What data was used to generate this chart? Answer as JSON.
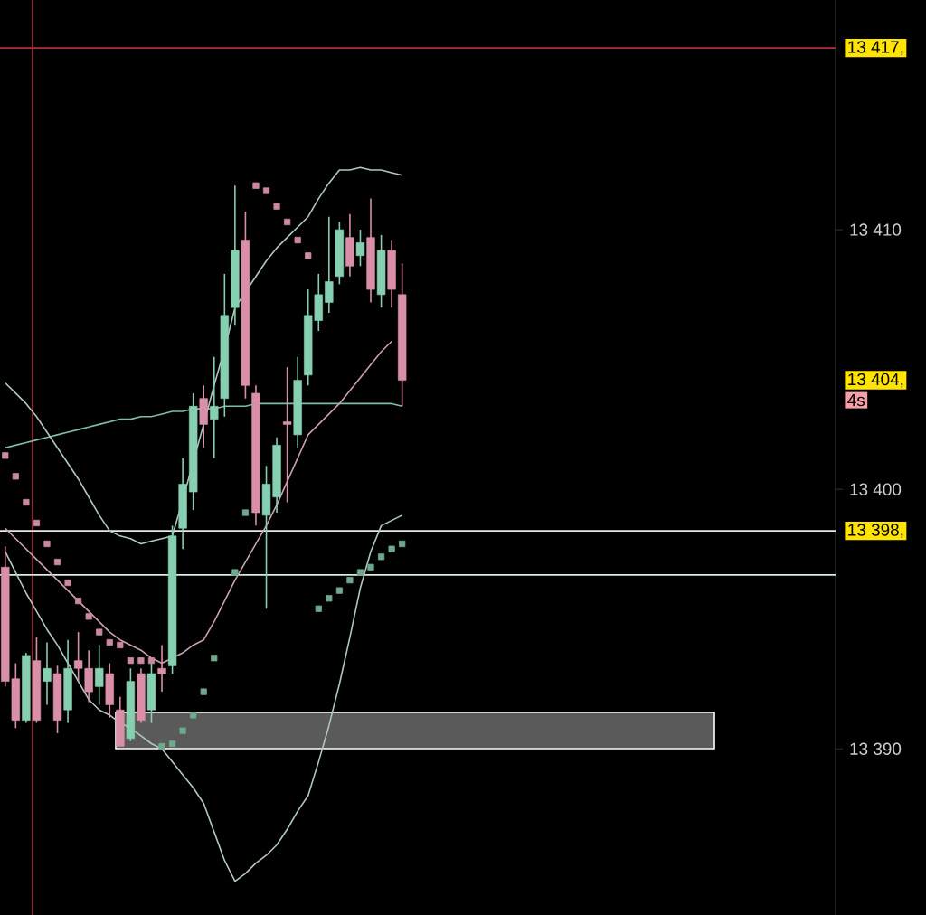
{
  "chart_data": {
    "type": "candlestick",
    "categories": [
      null,
      null,
      null,
      null,
      null,
      null,
      null,
      null,
      null,
      null,
      null,
      null,
      null,
      null,
      null,
      null,
      null,
      null,
      null,
      null,
      null,
      null,
      null,
      null,
      null,
      null,
      null,
      null,
      null,
      null,
      null,
      null,
      null,
      null,
      null,
      null,
      null,
      null,
      null,
      null,
      null,
      null,
      null,
      null,
      null,
      null,
      null,
      null,
      null,
      null,
      null,
      null,
      null,
      null,
      null,
      null,
      null,
      null,
      null,
      null,
      null,
      null,
      null,
      null,
      null,
      null,
      null,
      null,
      null,
      null,
      null,
      null,
      null,
      null,
      null,
      null,
      null,
      null,
      null,
      null
    ],
    "ohlc": [
      [
        13397.0,
        13397.8,
        13392.4,
        13392.6
      ],
      [
        13392.7,
        13393.3,
        13390.8,
        13391.1
      ],
      [
        13391.1,
        13393.7,
        13391.0,
        13393.6
      ],
      [
        13393.4,
        13394.3,
        13391.0,
        13391.1
      ],
      [
        13392.6,
        13394.1,
        13391.7,
        13393.1
      ],
      [
        13392.9,
        13393.2,
        13390.6,
        13391.1
      ],
      [
        13391.5,
        13394.2,
        13391.0,
        13393.1
      ],
      [
        13393.4,
        13394.5,
        13392.6,
        13393.1
      ],
      [
        13393.1,
        13393.8,
        13391.8,
        13392.2
      ],
      [
        13392.4,
        13394.0,
        13391.7,
        13393.1
      ],
      [
        13392.9,
        13393.3,
        13391.2,
        13391.7
      ],
      [
        13391.5,
        13392.0,
        13390.1,
        13390.1
      ],
      [
        13390.4,
        13393.1,
        13390.3,
        13392.6
      ],
      [
        13392.9,
        13393.1,
        13391.0,
        13391.1
      ],
      [
        13391.5,
        13393.3,
        13391.0,
        13392.9
      ],
      [
        13393.1,
        13394.0,
        13392.2,
        13392.9
      ],
      [
        13393.2,
        13398.6,
        13392.9,
        13398.2
      ],
      [
        13398.5,
        13401.2,
        13397.7,
        13400.2
      ],
      [
        13399.9,
        13403.7,
        13399.2,
        13403.2
      ],
      [
        13403.5,
        13404.0,
        13401.6,
        13402.5
      ],
      [
        13402.7,
        13405.1,
        13401.2,
        13403.2
      ],
      [
        13403.5,
        13408.3,
        13402.8,
        13406.7
      ],
      [
        13407.0,
        13411.7,
        13406.3,
        13409.2
      ],
      [
        13409.6,
        13410.7,
        13403.5,
        13404.0
      ],
      [
        13403.7,
        13404.0,
        13398.6,
        13399.1
      ],
      [
        13399.0,
        13400.9,
        13395.4,
        13400.2
      ],
      [
        13399.7,
        13402.0,
        13399.1,
        13401.7
      ],
      [
        13402.6,
        13404.7,
        13399.5,
        13402.5
      ],
      [
        13402.1,
        13405.1,
        13401.6,
        13404.2
      ],
      [
        13404.4,
        13407.7,
        13404.0,
        13406.7
      ],
      [
        13406.5,
        13408.3,
        13406.1,
        13407.5
      ],
      [
        13407.2,
        13410.5,
        13406.8,
        13408.0
      ],
      [
        13408.2,
        13410.3,
        13407.9,
        13410.0
      ],
      [
        13409.7,
        13410.6,
        13408.2,
        13408.6
      ],
      [
        13409.0,
        13410.0,
        13408.6,
        13409.5
      ],
      [
        13409.7,
        13411.2,
        13407.2,
        13407.7
      ],
      [
        13407.5,
        13409.8,
        13407.0,
        13409.2
      ],
      [
        13409.2,
        13409.6,
        13407.0,
        13407.7
      ],
      [
        13407.5,
        13408.7,
        13403.2,
        13404.2
      ],
      null,
      null,
      null,
      null,
      null,
      null,
      null,
      null,
      null,
      null,
      null,
      null,
      null,
      null,
      null,
      null,
      null,
      null,
      null,
      null,
      null,
      null,
      null,
      null,
      null,
      null,
      null,
      null,
      null,
      null,
      null,
      null,
      null,
      null,
      null,
      null,
      null,
      null,
      null,
      null,
      null
    ],
    "colors": [
      "#d98fa8",
      "#d98fa8",
      "#86cfb0",
      "#d98fa8",
      "#86cfb0",
      "#d98fa8",
      "#86cfb0",
      "#d98fa8",
      "#d98fa8",
      "#86cfb0",
      "#d98fa8",
      "#d98fa8",
      "#86cfb0",
      "#d98fa8",
      "#86cfb0",
      "#d98fa8",
      "#86cfb0",
      "#86cfb0",
      "#86cfb0",
      "#d98fa8",
      "#86cfb0",
      "#86cfb0",
      "#86cfb0",
      "#d98fa8",
      "#d98fa8",
      "#86cfb0",
      "#86cfb0",
      "#d98fa8",
      "#86cfb0",
      "#86cfb0",
      "#86cfb0",
      "#86cfb0",
      "#86cfb0",
      "#d98fa8",
      "#86cfb0",
      "#d98fa8",
      "#86cfb0",
      "#d98fa8",
      "#d98fa8",
      null,
      null,
      null,
      null,
      null,
      null,
      null,
      null,
      null,
      null,
      null,
      null,
      null,
      null,
      null,
      null,
      null,
      null,
      null,
      null,
      null,
      null,
      null,
      null,
      null,
      null,
      null,
      null,
      null,
      null,
      null,
      null,
      null,
      null,
      null,
      null,
      null,
      null,
      null,
      null,
      null
    ],
    "series": [
      {
        "type": "line",
        "color": "#7fbfa0",
        "values": [
          13401.6,
          13401.7,
          13401.8,
          13401.9,
          13402.0,
          13402.1,
          13402.2,
          13402.3,
          13402.4,
          13402.5,
          13402.6,
          13402.7,
          13402.7,
          13402.8,
          13402.8,
          13402.9,
          13403.0,
          13403.0,
          13403.1,
          13403.1,
          13403.1,
          13403.2,
          13403.2,
          13403.2,
          13403.3,
          13403.3,
          13403.3,
          13403.3,
          13403.3,
          13403.3,
          13403.3,
          13403.3,
          13403.3,
          13403.3,
          13403.3,
          13403.3,
          13403.3,
          13403.3,
          13403.2,
          null,
          null,
          null,
          null,
          null,
          null,
          null,
          null,
          null,
          null,
          null,
          null,
          null,
          null,
          null,
          null,
          null,
          null,
          null,
          null,
          null,
          null,
          null,
          null,
          null,
          null,
          null,
          null,
          null,
          null,
          null,
          null,
          null,
          null,
          null,
          null,
          null,
          null,
          null,
          null,
          null
        ]
      },
      {
        "type": "line",
        "color": "#b0c8bc",
        "values": [
          13404.1,
          13403.7,
          13403.3,
          13402.8,
          13402.2,
          13401.6,
          13401.0,
          13400.4,
          13399.7,
          13399.0,
          13398.4,
          13398.2,
          13398.1,
          13397.9,
          13398.0,
          13398.1,
          13398.2,
          13399.6,
          null,
          13402.5,
          13404.0,
          13405.4,
          13407.0,
          13407.6,
          13408.2,
          13408.8,
          13409.3,
          13409.7,
          13410.1,
          13410.5,
          13411.2,
          13411.8,
          13412.3,
          13412.3,
          13412.4,
          13412.3,
          13412.3,
          13412.2,
          13412.1,
          null,
          null,
          null,
          null,
          null,
          null,
          null,
          null,
          null,
          null,
          null,
          null,
          null,
          null,
          null,
          null,
          null,
          null,
          null,
          null,
          null,
          null,
          null,
          null,
          null,
          null,
          null,
          null,
          null,
          null,
          null,
          null,
          null,
          null,
          null,
          null,
          null,
          null,
          null,
          null,
          null
        ]
      },
      {
        "type": "line",
        "color": "#c9a0b0",
        "values": [
          13398.5,
          13398.1,
          13397.7,
          13397.3,
          13396.9,
          13396.5,
          13396.1,
          13395.7,
          13395.3,
          13394.9,
          13394.5,
          13394.2,
          13394.0,
          13393.8,
          13393.5,
          13393.3,
          13393.5,
          13393.7,
          13394.0,
          13394.2,
          13394.9,
          13395.7,
          13396.5,
          13397.2,
          13397.9,
          13398.6,
          13399.4,
          13400.3,
          13401.2,
          13402.1,
          13402.5,
          13402.9,
          13403.3,
          13403.8,
          13404.3,
          13404.8,
          13405.3,
          13405.7,
          null,
          null,
          null,
          null,
          null,
          null,
          null,
          null,
          null,
          null,
          null,
          null,
          null,
          null,
          null,
          null,
          null,
          null,
          null,
          null,
          null,
          null,
          null,
          null,
          null,
          null,
          null,
          null,
          null,
          null,
          null,
          null,
          null,
          null,
          null,
          null,
          null,
          null,
          null,
          null,
          null,
          null
        ]
      },
      {
        "type": "line",
        "color": "#b0c8bc",
        "values": [
          13397.6,
          13396.8,
          13396.0,
          13395.3,
          13394.6,
          13394.0,
          13393.3,
          13392.6,
          13391.9,
          13391.5,
          13391.3,
          13391.0,
          13390.8,
          13390.5,
          13390.2,
          13390.0,
          13389.5,
          13389.0,
          13388.5,
          13387.9,
          13386.8,
          13385.7,
          13384.9,
          13385.2,
          13385.6,
          13385.9,
          13386.3,
          13386.9,
          13387.6,
          13388.2,
          13389.5,
          13390.9,
          13392.5,
          13394.3,
          13396.2,
          13397.6,
          13398.6,
          13398.8,
          13399.0,
          null,
          null,
          null,
          null,
          null,
          null,
          null,
          null,
          null,
          null,
          null,
          null,
          null,
          null,
          null,
          null,
          null,
          null,
          null,
          null,
          null,
          null,
          null,
          null,
          null,
          null,
          null,
          null,
          null,
          null,
          null,
          null,
          null,
          null,
          null,
          null,
          null,
          null,
          null,
          null,
          null
        ]
      },
      {
        "type": "scatter",
        "marker": "square",
        "color": "#c98a9c",
        "values": [
          13401.3,
          13400.5,
          13399.5,
          13398.7,
          13397.9,
          13397.2,
          13396.4,
          13395.7,
          13395.1,
          13394.5,
          13394.1,
          13394.0,
          13393.4,
          13393.4,
          13393.4,
          null,
          null,
          null,
          null,
          null,
          null,
          null,
          null,
          null,
          13411.7,
          13411.5,
          13410.9,
          13410.3,
          13409.6,
          13409.0,
          null,
          null,
          null,
          null,
          null,
          null,
          null,
          null,
          null,
          null,
          null,
          null,
          null,
          null,
          null,
          null,
          null,
          null,
          null,
          null,
          null,
          null,
          null,
          null,
          null,
          null,
          null,
          null,
          null,
          null,
          null,
          null,
          null,
          null,
          null,
          null,
          null,
          null,
          null,
          null,
          null,
          null,
          null,
          null,
          null,
          null,
          null,
          null,
          null,
          null
        ]
      },
      {
        "type": "scatter",
        "marker": "square",
        "color": "#6fa88d",
        "values": [
          null,
          null,
          null,
          null,
          null,
          null,
          null,
          null,
          null,
          null,
          null,
          null,
          null,
          null,
          null,
          13390.1,
          13390.2,
          13390.7,
          13391.3,
          13392.2,
          13393.5,
          null,
          13396.8,
          13399.1,
          null,
          null,
          null,
          null,
          null,
          null,
          13395.4,
          13395.8,
          13396.1,
          13396.5,
          13396.8,
          13397.0,
          13397.4,
          13397.7,
          13397.9,
          null,
          null,
          null,
          null,
          null,
          null,
          null,
          null,
          null,
          null,
          null,
          null,
          null,
          null,
          null,
          null,
          null,
          null,
          null,
          null,
          null,
          null,
          null,
          null,
          null,
          null,
          null,
          null,
          null,
          null,
          null,
          null,
          null,
          null,
          null,
          null,
          null,
          null,
          null,
          null,
          null
        ]
      }
    ],
    "ref_lines": [
      {
        "axis": "y",
        "value": 13417,
        "label": "13 417,",
        "color": "#b03040"
      },
      {
        "axis": "y",
        "value": 13398.4,
        "label": "13 398,",
        "color": "#e8e8e8"
      },
      {
        "axis": "y",
        "value": 13396.7,
        "color": "#d8eee4"
      }
    ],
    "annotations": [
      "13 404,",
      "4s"
    ],
    "ylim": [
      13383.6,
      13418.85
    ],
    "yticks": [
      {
        "value": 13390,
        "label": "13 390"
      },
      {
        "value": 13400,
        "label": "13 400"
      },
      {
        "value": 13410,
        "label": "13 410"
      }
    ],
    "tick_labels": "y"
  }
}
